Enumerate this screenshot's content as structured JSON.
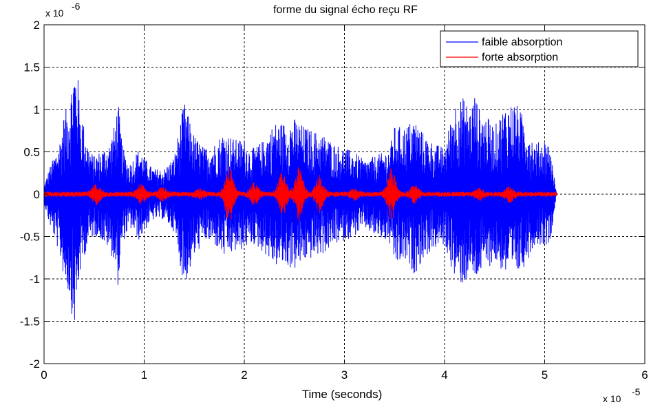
{
  "chart_data": {
    "type": "line",
    "title": "forme du signal écho reçu RF",
    "xlabel": "Time (seconds)",
    "ylabel": "",
    "x_scale_label": "x 10",
    "x_scale_exponent": "-5",
    "y_scale_label": "x 10",
    "y_scale_exponent": "-6",
    "xlim": [
      0,
      6
    ],
    "ylim": [
      -2,
      2
    ],
    "x_ticks": [
      0,
      1,
      2,
      3,
      4,
      5,
      6
    ],
    "x_tick_labels": [
      "0",
      "1",
      "2",
      "3",
      "4",
      "5",
      "6"
    ],
    "y_ticks": [
      -2,
      -1.5,
      -1,
      -0.5,
      0,
      0.5,
      1,
      1.5,
      2
    ],
    "y_tick_labels": [
      "-2",
      "-1.5",
      "-1",
      "-0.5",
      "0",
      "0.5",
      "1",
      "1.5",
      "2"
    ],
    "grid": true,
    "legend_position": "top-right",
    "signal_end": 5.12,
    "series": [
      {
        "name": "faible absorption",
        "color": "#0000ff",
        "envelope_x": [
          0.0,
          0.05,
          0.1,
          0.15,
          0.2,
          0.25,
          0.3,
          0.33,
          0.36,
          0.4,
          0.45,
          0.5,
          0.55,
          0.6,
          0.65,
          0.7,
          0.74,
          0.78,
          0.85,
          0.9,
          0.95,
          1.0,
          1.05,
          1.1,
          1.2,
          1.3,
          1.4,
          1.5,
          1.6,
          1.7,
          1.8,
          1.9,
          2.0,
          2.05,
          2.1,
          2.2,
          2.3,
          2.4,
          2.5,
          2.6,
          2.7,
          2.8,
          2.9,
          3.0,
          3.1,
          3.2,
          3.3,
          3.4,
          3.45,
          3.5,
          3.6,
          3.7,
          3.8,
          3.9,
          4.0,
          4.1,
          4.2,
          4.25,
          4.3,
          4.35,
          4.4,
          4.5,
          4.6,
          4.7,
          4.8,
          4.9,
          5.0,
          5.05,
          5.12
        ],
        "envelope_top": [
          0.1,
          0.3,
          0.45,
          0.6,
          0.95,
          1.1,
          1.55,
          1.5,
          1.1,
          0.8,
          0.55,
          0.45,
          0.5,
          0.55,
          0.6,
          0.8,
          1.1,
          0.6,
          0.35,
          0.45,
          0.55,
          0.45,
          0.35,
          0.3,
          0.3,
          0.45,
          1.1,
          0.7,
          0.55,
          0.6,
          0.75,
          0.65,
          0.65,
          0.55,
          0.55,
          0.65,
          0.85,
          0.85,
          0.9,
          0.8,
          0.75,
          0.7,
          0.6,
          0.55,
          0.5,
          0.4,
          0.45,
          0.5,
          0.55,
          0.8,
          0.8,
          0.9,
          0.7,
          0.6,
          0.55,
          1.1,
          1.15,
          1.0,
          1.2,
          1.0,
          0.95,
          0.8,
          1.05,
          1.1,
          0.9,
          0.6,
          0.65,
          0.6,
          0.0
        ],
        "envelope_bottom": [
          -0.1,
          -0.35,
          -0.5,
          -0.7,
          -1.0,
          -1.2,
          -1.6,
          -1.3,
          -0.95,
          -0.75,
          -0.55,
          -0.5,
          -0.5,
          -0.6,
          -0.65,
          -0.8,
          -1.1,
          -0.6,
          -0.4,
          -0.45,
          -0.55,
          -0.45,
          -0.35,
          -0.3,
          -0.3,
          -0.45,
          -1.1,
          -0.75,
          -0.55,
          -0.6,
          -0.75,
          -0.7,
          -0.65,
          -0.6,
          -0.6,
          -0.7,
          -0.85,
          -0.85,
          -0.9,
          -0.8,
          -0.75,
          -0.7,
          -0.6,
          -0.55,
          -0.5,
          -0.4,
          -0.5,
          -0.55,
          -0.6,
          -0.85,
          -0.8,
          -0.95,
          -0.75,
          -0.65,
          -0.6,
          -1.0,
          -1.1,
          -0.9,
          -1.05,
          -0.95,
          -0.9,
          -0.8,
          -0.95,
          -1.0,
          -0.85,
          -0.6,
          -0.6,
          -0.6,
          0.0
        ]
      },
      {
        "name": "forte absorption",
        "color": "#ff0000",
        "base_amplitude": 0.03,
        "bursts": [
          {
            "center": 0.52,
            "amplitude": 0.1
          },
          {
            "center": 0.97,
            "amplitude": 0.1
          },
          {
            "center": 1.18,
            "amplitude": 0.06
          },
          {
            "center": 1.55,
            "amplitude": 0.05
          },
          {
            "center": 1.85,
            "amplitude": 0.33
          },
          {
            "center": 2.1,
            "amplitude": 0.12
          },
          {
            "center": 2.38,
            "amplitude": 0.25
          },
          {
            "center": 2.55,
            "amplitude": 0.3
          },
          {
            "center": 2.75,
            "amplitude": 0.2
          },
          {
            "center": 3.1,
            "amplitude": 0.05
          },
          {
            "center": 3.47,
            "amplitude": 0.3
          },
          {
            "center": 3.7,
            "amplitude": 0.1
          },
          {
            "center": 4.35,
            "amplitude": 0.05
          },
          {
            "center": 4.65,
            "amplitude": 0.08
          }
        ]
      }
    ]
  }
}
